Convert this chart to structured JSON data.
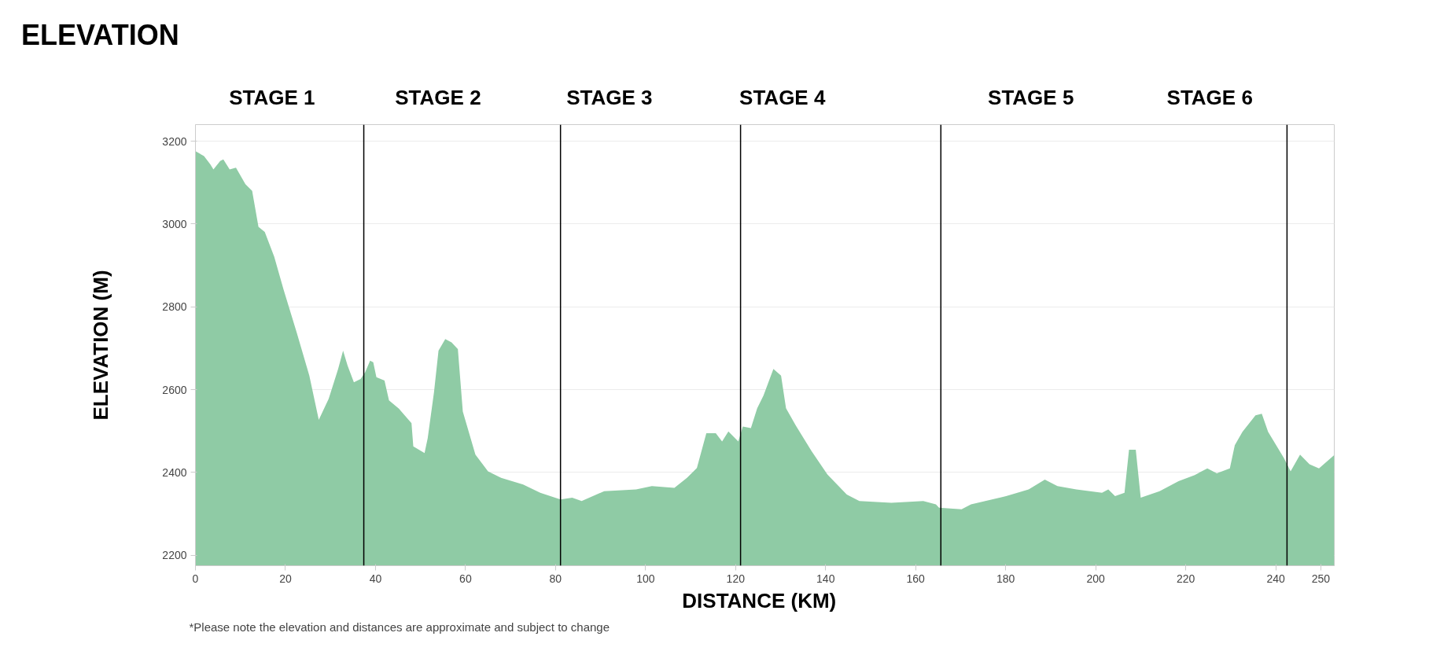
{
  "chart_data": {
    "type": "area",
    "title": "ELEVATION",
    "xlabel": "DISTANCE   (KM)",
    "ylabel": "ELEVATION (M)",
    "annotations": [
      "STAGE 1",
      "STAGE 2",
      "STAGE 3",
      "STAGE 4",
      "STAGE 5",
      "STAGE 6",
      "*Please note the elevation and distances are approximate and subject to change"
    ],
    "x": [
      0,
      1.9,
      3.3,
      4.0,
      5.5,
      6.2,
      7.6,
      9.0,
      11.1,
      12.6,
      14.0,
      15.4,
      17.5,
      19.6,
      22.5,
      25.3,
      27.4,
      29.6,
      31.7,
      32.8,
      33.8,
      35.2,
      36.7,
      37.7,
      38.8,
      39.5,
      40.2,
      42.0,
      43.0,
      45.2,
      48.0,
      48.4,
      50.9,
      51.6,
      53.0,
      54.0,
      55.5,
      56.9,
      58.3,
      59.4,
      62.2,
      65.0,
      67.9,
      72.8,
      76.6,
      81.1,
      83.7,
      85.8,
      90.8,
      97.9,
      101.4,
      106.4,
      109.2,
      111.4,
      113.5,
      115.6,
      117.0,
      118.4,
      120.6,
      121.6,
      123.4,
      124.8,
      126.2,
      128.4,
      130.1,
      131.2,
      133.3,
      136.9,
      140.4,
      144.7,
      147.5,
      154.6,
      161.7,
      164.5,
      165.2,
      170.2,
      172.3,
      180.1,
      185.1,
      188.7,
      191.5,
      195.7,
      201.4,
      202.8,
      204.3,
      206.4,
      207.4,
      208.9,
      210.0,
      214.2,
      218.4,
      222.0,
      224.8,
      226.9,
      229.8,
      230.9,
      232.6,
      235.5,
      236.9,
      238.3,
      241.8,
      243.3,
      245.4,
      247.5,
      249.6,
      253.0
    ],
    "series": [
      {
        "color": "#8fcba5",
        "values": [
          3176,
          3164,
          3144,
          3132,
          3152,
          3156,
          3132,
          3136,
          3096,
          3080,
          2993,
          2981,
          2921,
          2841,
          2738,
          2634,
          2527,
          2578,
          2650,
          2694,
          2658,
          2618,
          2626,
          2642,
          2670,
          2666,
          2630,
          2622,
          2574,
          2554,
          2519,
          2463,
          2447,
          2483,
          2594,
          2694,
          2722,
          2714,
          2698,
          2547,
          2443,
          2403,
          2387,
          2371,
          2351,
          2335,
          2339,
          2331,
          2355,
          2359,
          2367,
          2363,
          2387,
          2411,
          2495,
          2495,
          2475,
          2499,
          2475,
          2511,
          2507,
          2555,
          2586,
          2650,
          2634,
          2555,
          2515,
          2451,
          2395,
          2347,
          2331,
          2327,
          2331,
          2323,
          2315,
          2311,
          2323,
          2343,
          2359,
          2383,
          2367,
          2359,
          2351,
          2359,
          2343,
          2351,
          2455,
          2455,
          2339,
          2355,
          2379,
          2394,
          2410,
          2398,
          2410,
          2466,
          2498,
          2538,
          2542,
          2498,
          2435,
          2403,
          2443,
          2420,
          2410,
          2442
        ]
      }
    ],
    "xlim": [
      0,
      253
    ],
    "ylim": [
      2175,
      3240
    ],
    "xticks": [
      0,
      20,
      40,
      60,
      80,
      100,
      120,
      140,
      160,
      180,
      200,
      220,
      240,
      250
    ],
    "yticks": [
      2200,
      2400,
      2600,
      2800,
      3000,
      3200
    ],
    "grid": "y",
    "ref_lines": [
      {
        "axis": "x",
        "value": 37.4,
        "color": "#000000"
      },
      {
        "axis": "x",
        "value": 81.1,
        "color": "#000000"
      },
      {
        "axis": "x",
        "value": 121.1,
        "color": "#000000"
      },
      {
        "axis": "x",
        "value": 165.6,
        "color": "#000000"
      },
      {
        "axis": "x",
        "value": 242.5,
        "color": "#000000"
      }
    ]
  }
}
